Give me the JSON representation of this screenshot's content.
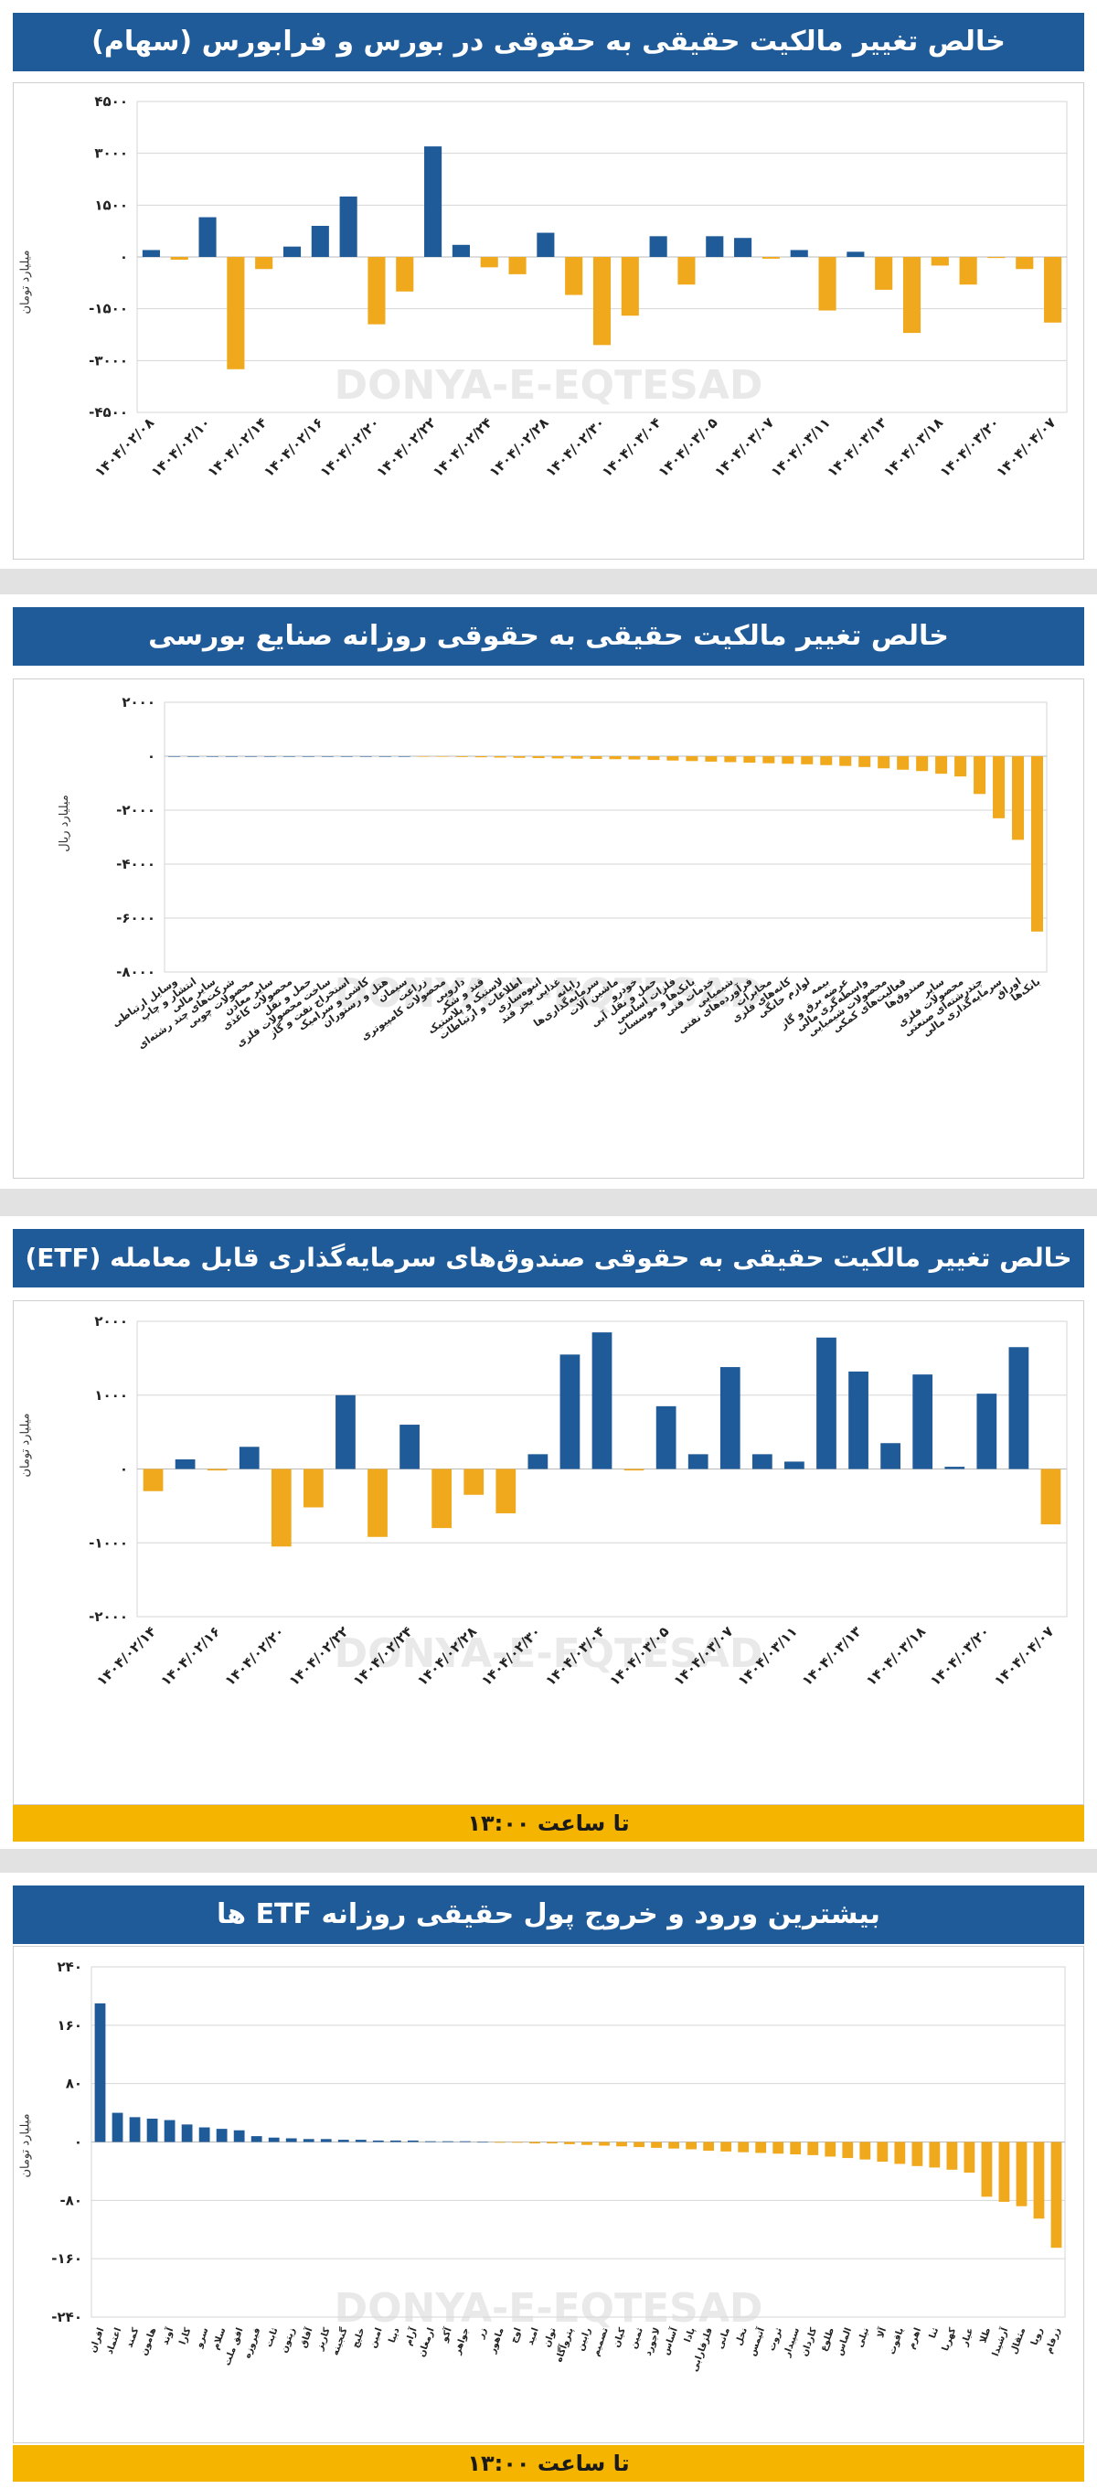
{
  "watermark": "DONYA-E-EQTESAD",
  "colors": {
    "positive": "#1f5a99",
    "negative": "#f0a81c",
    "title_bg": "#1f5a99",
    "footer_bg": "#f4b400"
  },
  "chart_data": [
    {
      "type": "bar",
      "title": "خالص تغییر مالکیت حقیقی به حقوقی در بورس و فرابورس (سهام)",
      "ylabel": "میلیارد تومان",
      "ylim": [
        -4500,
        4500
      ],
      "yticks": [
        4500,
        3000,
        1500,
        0,
        -1500,
        -3000,
        -4500
      ],
      "ytick_labels": [
        "۴۵۰۰",
        "۳۰۰۰",
        "۱۵۰۰",
        "۰",
        "-۱۵۰۰",
        "-۳۰۰۰",
        "-۴۵۰۰"
      ],
      "categories": [
        "۱۴۰۴/۰۲/۰۸",
        "",
        "۱۴۰۴/۰۲/۱۰",
        "",
        "۱۴۰۴/۰۲/۱۴",
        "",
        "۱۴۰۴/۰۲/۱۶",
        "",
        "۱۴۰۴/۰۲/۲۰",
        "",
        "۱۴۰۴/۰۲/۲۲",
        "",
        "۱۴۰۴/۰۲/۲۴",
        "",
        "۱۴۰۴/۰۲/۲۸",
        "",
        "۱۴۰۴/۰۲/۳۰",
        "",
        "۱۴۰۴/۰۳/۰۴",
        "",
        "۱۴۰۴/۰۳/۰۵",
        "",
        "۱۴۰۴/۰۳/۰۷",
        "",
        "۱۴۰۴/۰۳/۱۱",
        "",
        "۱۴۰۴/۰۳/۱۳",
        "",
        "۱۴۰۴/۰۳/۱۸",
        "",
        "۱۴۰۴/۰۳/۲۰",
        "",
        "۱۴۰۴/۰۴/۰۷"
      ],
      "values": [
        200,
        -80,
        1150,
        -3250,
        -350,
        300,
        900,
        1750,
        -1950,
        -1000,
        3200,
        350,
        -300,
        -500,
        700,
        -1100,
        -2550,
        -1700,
        600,
        -800,
        600,
        550,
        -50,
        200,
        -1550,
        150,
        -950,
        -2200,
        -250,
        -800,
        -30,
        -350,
        -1900
      ]
    },
    {
      "type": "bar",
      "title": "خالص تغییر مالکیت حقیقی به حقوقی روزانه صنایع بورسی",
      "ylabel": "میلیارد ریال",
      "ylim": [
        -8000,
        2000
      ],
      "yticks": [
        2000,
        0,
        -2000,
        -4000,
        -6000,
        -8000
      ],
      "ytick_labels": [
        "۲۰۰۰",
        "۰",
        "-۲۰۰۰",
        "-۴۰۰۰",
        "-۶۰۰۰",
        "-۸۰۰۰"
      ],
      "categories": [
        "وسایل ارتباطی",
        "انتشار و چاپ",
        "سایر مالی",
        "شرکت‌های چند رشته‌ای",
        "محصولات چوبی",
        "سایر معادن",
        "محصولات کاغذی",
        "حمل و نقل",
        "ساخت محصولات فلزی",
        "استخراج نفت و گاز",
        "کاشی و سرامیک",
        "هتل و رستوران",
        "سیمان",
        "زراعت",
        "محصولات کامپیوتری",
        "دارویی",
        "قند و شکر",
        "لاستیک و پلاستیک",
        "اطلاعات و ارتباطات",
        "انبوه‌سازی",
        "غذایی بجز قند",
        "رایانه",
        "سرمایه‌گذاری‌ها",
        "ماشین آلات",
        "خودرو",
        "حمل و نقل آبی",
        "فلزات اساسی",
        "بانک‌ها و موسسات",
        "خدمات فنی",
        "شیمیایی",
        "فرآورده‌های نفتی",
        "مخابرات",
        "کانه‌های فلزی",
        "لوازم خانگی",
        "بیمه",
        "عرضه برق و گاز",
        "واسطه‌گری مالی",
        "محصولات شیمیایی",
        "فعالیت‌های کمکی",
        "صندوق‌ها",
        "سایر",
        "محصولات فلزی",
        "چندرشته‌ای صنعتی",
        "سرمایه‌گذاری مالی",
        "اوراق",
        "بانک‌ها"
      ],
      "values": [
        0,
        0,
        0,
        0,
        0,
        0,
        0,
        0,
        0,
        0,
        0,
        0,
        0,
        -10,
        -20,
        -30,
        -40,
        -50,
        -60,
        -70,
        -80,
        -90,
        -100,
        -110,
        -120,
        -140,
        -160,
        -180,
        -200,
        -220,
        -240,
        -260,
        -280,
        -300,
        -330,
        -360,
        -400,
        -450,
        -500,
        -550,
        -650,
        -750,
        -1400,
        -2300,
        -3100,
        -6500
      ]
    },
    {
      "type": "bar",
      "title": "خالص تغییر مالکیت حقیقی به حقوقی صندوق‌های سرمایه‌گذاری قابل معامله (ETF)",
      "ylabel": "میلیارد تومان",
      "ylim": [
        -2000,
        2000
      ],
      "yticks": [
        2000,
        1000,
        0,
        -1000,
        -2000
      ],
      "ytick_labels": [
        "۲۰۰۰",
        "۱۰۰۰",
        "۰",
        "-۱۰۰۰",
        "-۲۰۰۰"
      ],
      "categories": [
        "۱۴۰۴/۰۲/۱۴",
        "",
        "۱۴۰۴/۰۲/۱۶",
        "",
        "۱۴۰۴/۰۲/۲۰",
        "",
        "۱۴۰۴/۰۲/۲۲",
        "",
        "۱۴۰۴/۰۲/۲۴",
        "",
        "۱۴۰۴/۰۲/۲۸",
        "",
        "۱۴۰۴/۰۲/۳۰",
        "",
        "۱۴۰۴/۰۳/۰۴",
        "",
        "۱۴۰۴/۰۳/۰۵",
        "",
        "۱۴۰۴/۰۳/۰۷",
        "",
        "۱۴۰۴/۰۳/۱۱",
        "",
        "۱۴۰۴/۰۳/۱۳",
        "",
        "۱۴۰۴/۰۳/۱۸",
        "",
        "۱۴۰۴/۰۳/۲۰",
        "",
        "۱۴۰۴/۰۴/۰۷"
      ],
      "values": [
        -300,
        130,
        -20,
        300,
        -1050,
        -520,
        1000,
        -920,
        600,
        -800,
        -350,
        -600,
        200,
        1550,
        1850,
        -20,
        850,
        200,
        1380,
        200,
        100,
        1780,
        1320,
        350,
        1280,
        30,
        1020,
        1650,
        -750
      ]
    },
    {
      "type": "bar",
      "title": "بیشترین ورود و خروج پول حقیقی روزانه ETF ها",
      "ylabel": "میلیارد تومان",
      "ylim": [
        -240,
        240
      ],
      "yticks": [
        240,
        160,
        80,
        0,
        -80,
        -160,
        -240
      ],
      "ytick_labels": [
        "۲۴۰",
        "۱۶۰",
        "۸۰",
        "۰",
        "-۸۰",
        "-۱۶۰",
        "-۲۴۰"
      ],
      "categories": [
        "افران",
        "اعتماد",
        "کمند",
        "هامون",
        "آوند",
        "کارا",
        "سرو",
        "سلام",
        "افق ملت",
        "فیروزه",
        "ثابت",
        "زیتون",
        "آفاق",
        "کاریز",
        "گنجینه",
        "خلیج",
        "امین",
        "دیبا",
        "آرام",
        "ارمغان",
        "آکو",
        "جواهر",
        "زر",
        "ماهور",
        "اوج",
        "امید",
        "توان",
        "پتروآگاه",
        "رابین",
        "تصمیم",
        "کیان",
        "ثمین",
        "لاجورد",
        "آساس",
        "پادا",
        "فلزفارابی",
        "مانی",
        "نخل",
        "آتیمس",
        "ثروت",
        "سپیدار",
        "کاردان",
        "طلوع",
        "الماس",
        "نیلی",
        "آلا",
        "یاقوت",
        "اهرم",
        "ثنا",
        "کهربا",
        "عیار",
        "طلا",
        "آرشیدا",
        "مثقال",
        "رویا",
        "زرفام"
      ],
      "values": [
        190,
        40,
        34,
        32,
        30,
        24,
        20,
        18,
        16,
        8,
        6,
        5,
        4,
        4,
        3,
        3,
        2,
        2,
        2,
        1,
        1,
        1,
        0,
        -1,
        -1,
        -2,
        -2,
        -3,
        -4,
        -5,
        -6,
        -7,
        -8,
        -9,
        -10,
        -12,
        -13,
        -14,
        -15,
        -16,
        -17,
        -18,
        -20,
        -22,
        -24,
        -27,
        -30,
        -33,
        -35,
        -38,
        -42,
        -75,
        -82,
        -88,
        -105,
        -145
      ]
    }
  ],
  "footers": [
    "تا ساعت ۱۳:۰۰",
    "تا ساعت ۱۳:۰۰"
  ]
}
